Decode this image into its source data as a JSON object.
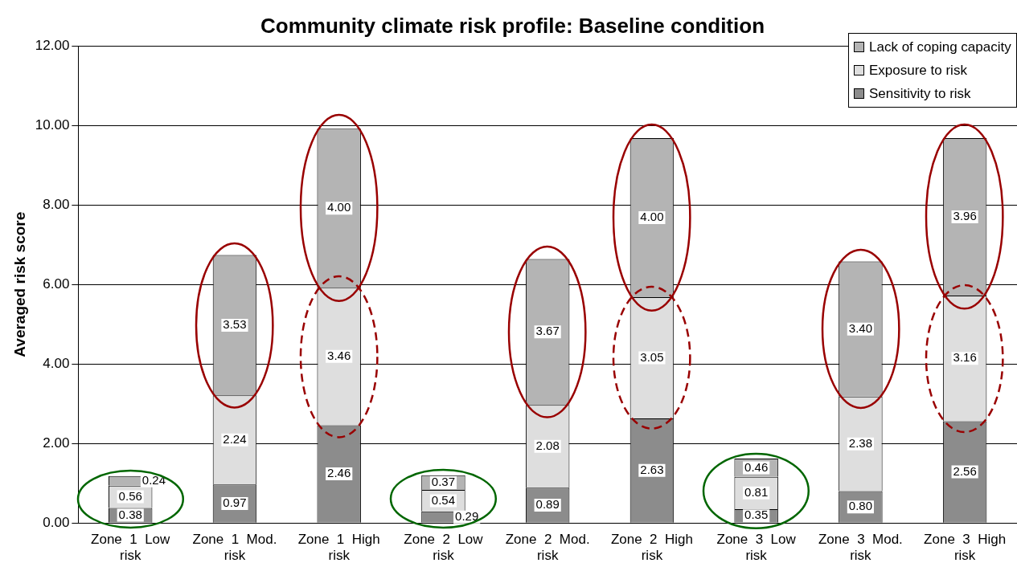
{
  "chart_data": {
    "type": "bar",
    "title": "Community climate risk profile: Baseline condition",
    "ylabel": "Averaged risk score",
    "categories": [
      "Zone 1 Low risk",
      "Zone 1 Mod. risk",
      "Zone 1 High risk",
      "Zone 2 Low risk",
      "Zone 2 Mod. risk",
      "Zone 2 High risk",
      "Zone 3 Low risk",
      "Zone 3 Mod. risk",
      "Zone 3 High risk"
    ],
    "stacked": true,
    "series": [
      {
        "name": "Sensitivity to risk",
        "color": "#8c8c8c",
        "values": [
          0.38,
          0.97,
          2.46,
          0.29,
          0.89,
          2.63,
          0.35,
          0.8,
          2.56
        ],
        "value_labels": [
          "0.38",
          "0.97",
          "2.46",
          "0.29",
          "0.89",
          "2.63",
          "0.35",
          "0.80",
          "2.56"
        ]
      },
      {
        "name": "Exposure to risk",
        "color": "#dedede",
        "values": [
          0.56,
          2.24,
          3.46,
          0.54,
          2.08,
          3.05,
          0.81,
          2.38,
          3.16
        ],
        "value_labels": [
          "0.56",
          "2.24",
          "3.46",
          "0.54",
          "2.08",
          "3.05",
          "0.81",
          "2.38",
          "3.16"
        ]
      },
      {
        "name": "Lack of coping capacity",
        "color": "#b4b4b4",
        "values": [
          0.24,
          3.53,
          4.0,
          0.37,
          3.67,
          4.0,
          0.46,
          3.4,
          3.96
        ],
        "value_labels": [
          "0.24",
          "3.53",
          "4.00",
          "0.37",
          "3.67",
          "4.00",
          "0.46",
          "3.40",
          "3.96"
        ]
      }
    ],
    "ylim": [
      0,
      12
    ],
    "yticks": [
      {
        "value": 0,
        "label": "0.00"
      },
      {
        "value": 2,
        "label": "2.00"
      },
      {
        "value": 4,
        "label": "4.00"
      },
      {
        "value": 6,
        "label": "6.00"
      },
      {
        "value": 8,
        "label": "8.00"
      },
      {
        "value": 10,
        "label": "10.00"
      },
      {
        "value": 12,
        "label": "12.00"
      }
    ],
    "grid": "y",
    "legend": "top right"
  }
}
